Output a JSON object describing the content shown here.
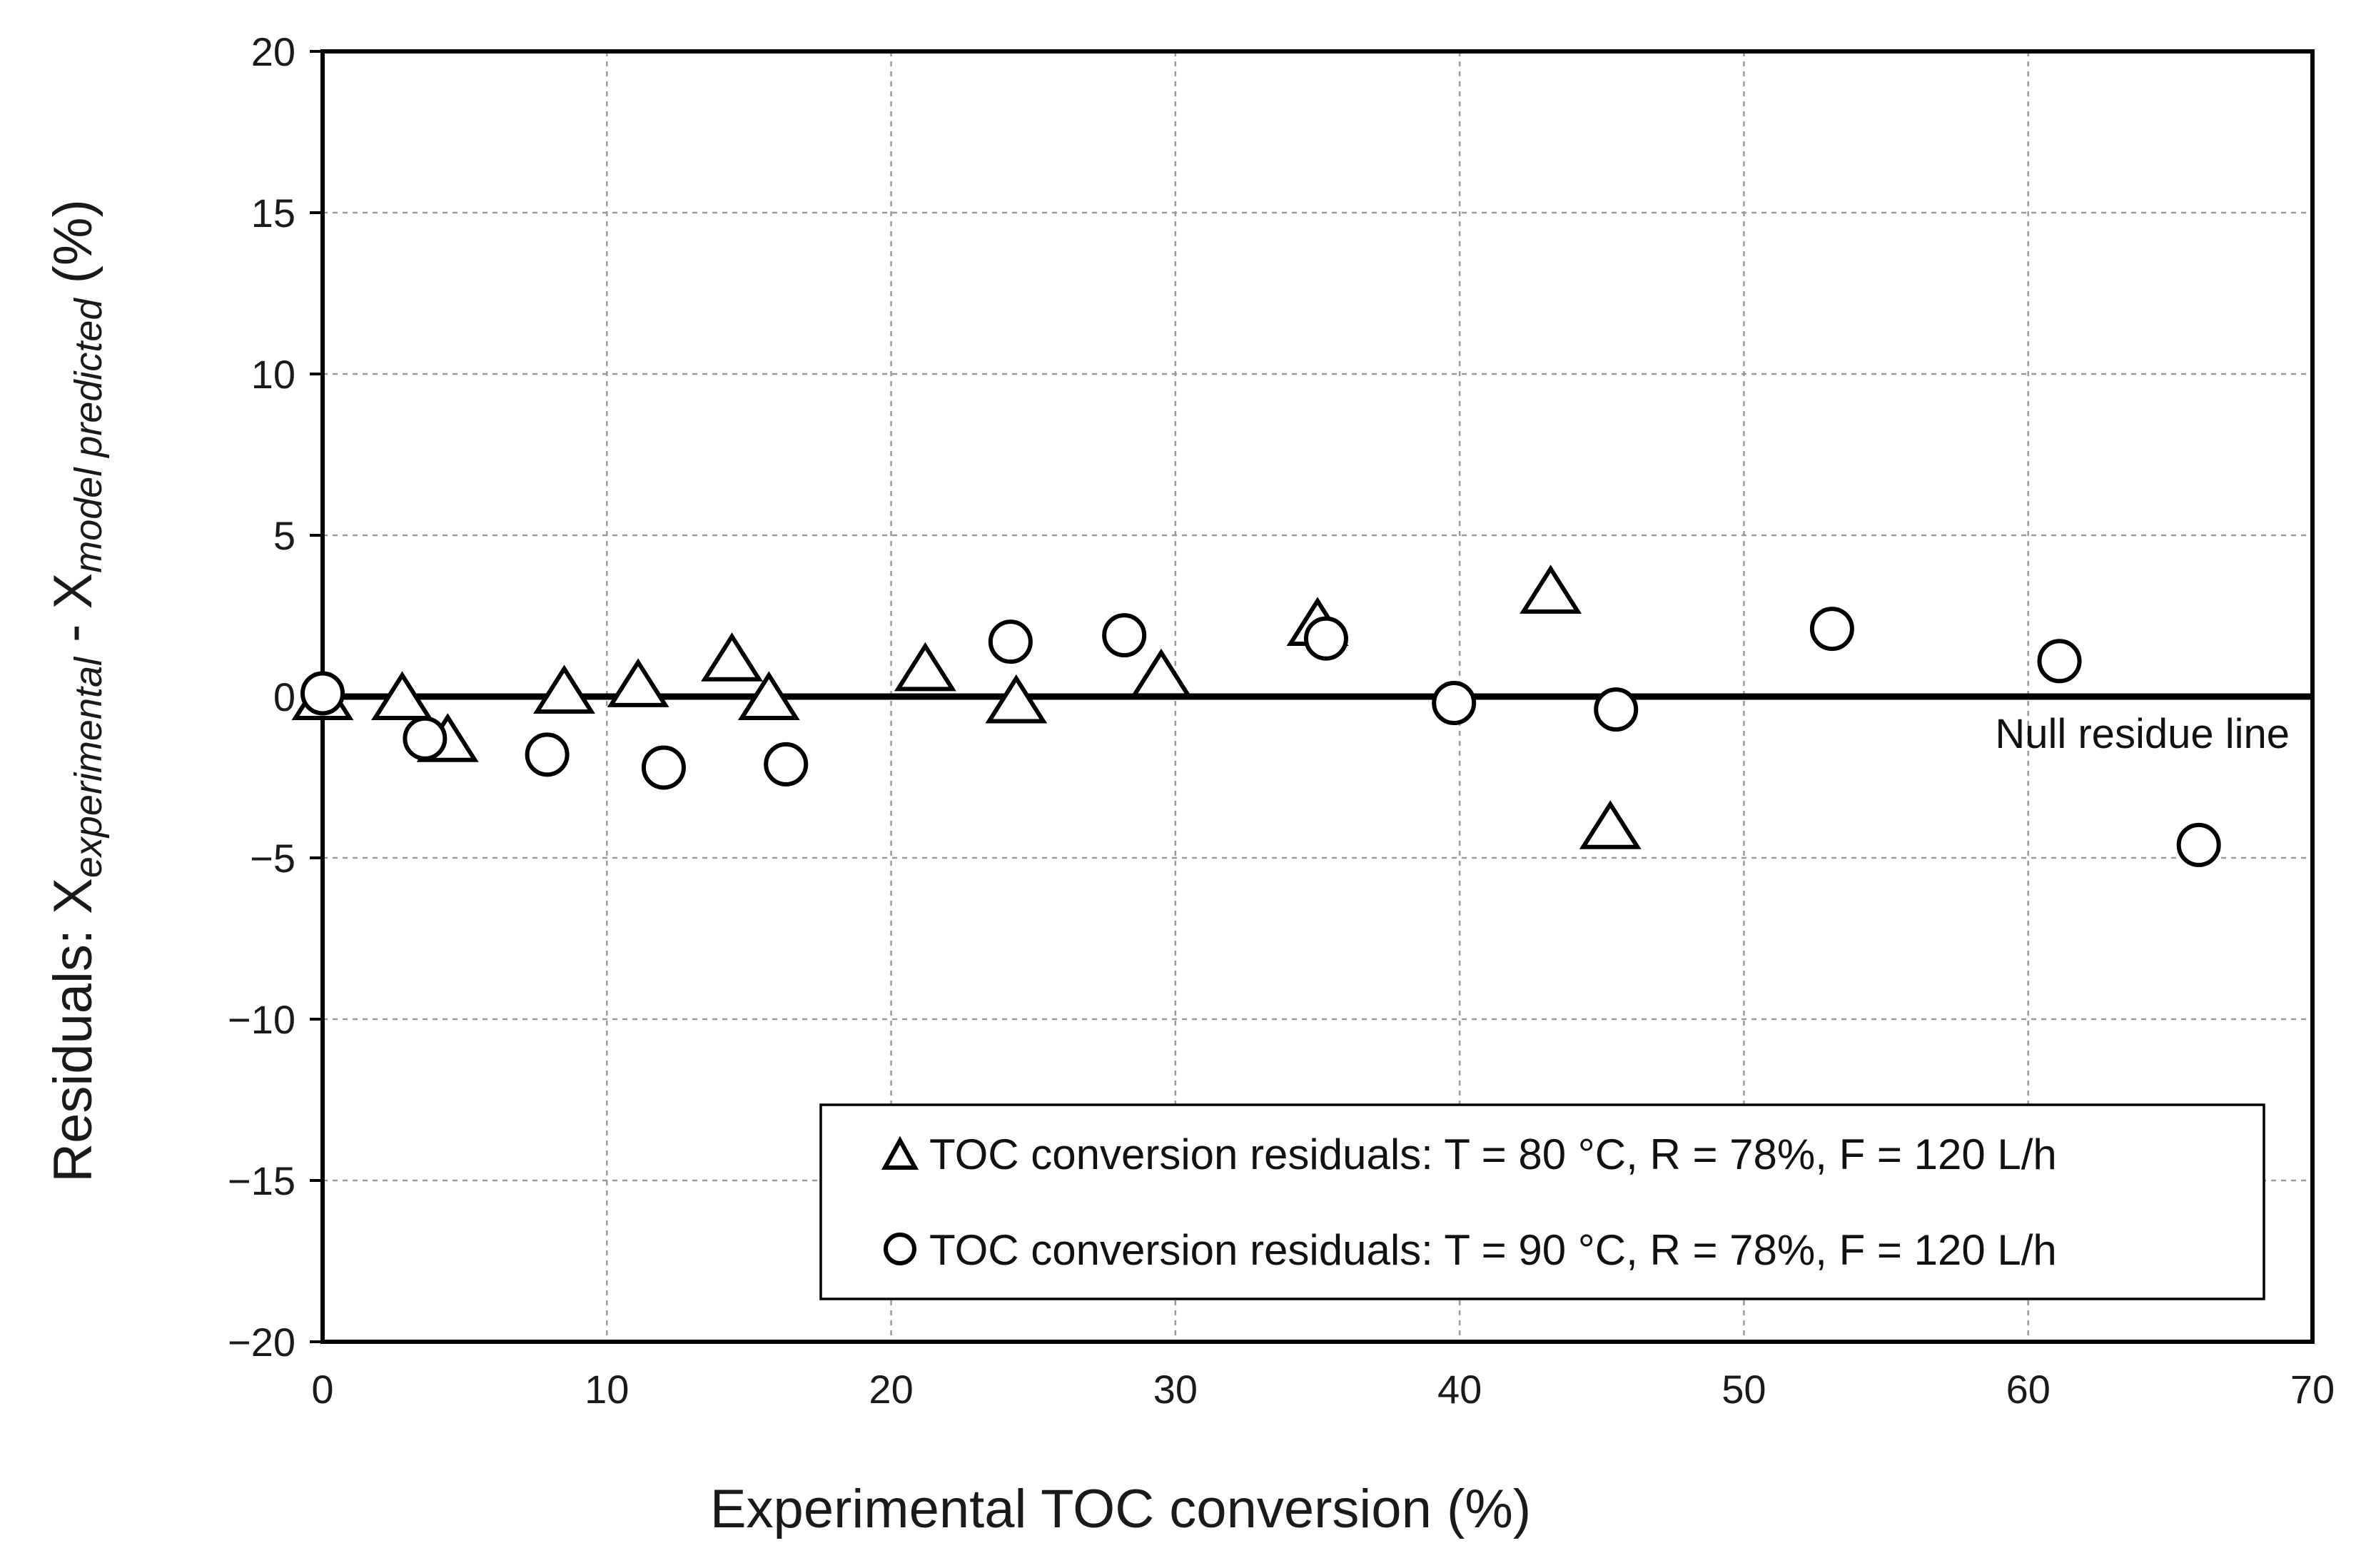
{
  "chart_data": {
    "type": "scatter",
    "title": "",
    "xlabel": "Experimental TOC conversion (%)",
    "ylabel": {
      "prefix": "Residuals: X",
      "sub1": "experimental",
      "middle": " - X",
      "sub2": "model predicted",
      "suffix": " (%)"
    },
    "xlim": [
      0,
      70
    ],
    "ylim": [
      -20,
      20
    ],
    "x_ticks": [
      "0",
      "10",
      "20",
      "30",
      "40",
      "50",
      "60",
      "70"
    ],
    "y_ticks": [
      "20",
      "15",
      "10",
      "5",
      "0",
      "−5",
      "−10",
      "−15",
      "−20"
    ],
    "x_tick_values": [
      0,
      10,
      20,
      30,
      40,
      50,
      60,
      70
    ],
    "y_tick_values": [
      20,
      15,
      10,
      5,
      0,
      -5,
      -10,
      -15,
      -20
    ],
    "grid": true,
    "legend_position": "bottom-right",
    "annotation": {
      "text": "Null residue line",
      "y": 0
    },
    "series": [
      {
        "name": "TOC conversion residuals: T = 80 °C, R = 78%, F = 120 L/h",
        "marker": "triangle",
        "x": [
          0,
          2.8,
          4.4,
          8.5,
          11.1,
          14.4,
          15.7,
          21.2,
          24.4,
          29.5,
          35.0,
          43.2,
          45.3
        ],
        "y": [
          0,
          0,
          -1.3,
          0.2,
          0.4,
          1.2,
          0,
          0.9,
          -0.1,
          0.7,
          2.3,
          3.3,
          -4.0
        ]
      },
      {
        "name": "TOC conversion residuals: T = 90 °C, R = 78%, F = 120 L/h",
        "marker": "circle",
        "x": [
          0,
          3.6,
          7.9,
          12.0,
          16.3,
          24.2,
          28.2,
          35.3,
          39.8,
          45.5,
          53.1,
          61.1,
          66.0
        ],
        "y": [
          0.1,
          -1.3,
          -1.8,
          -2.2,
          -2.1,
          1.7,
          1.9,
          1.8,
          -0.2,
          -0.4,
          2.1,
          1.1,
          -4.6
        ]
      }
    ]
  }
}
